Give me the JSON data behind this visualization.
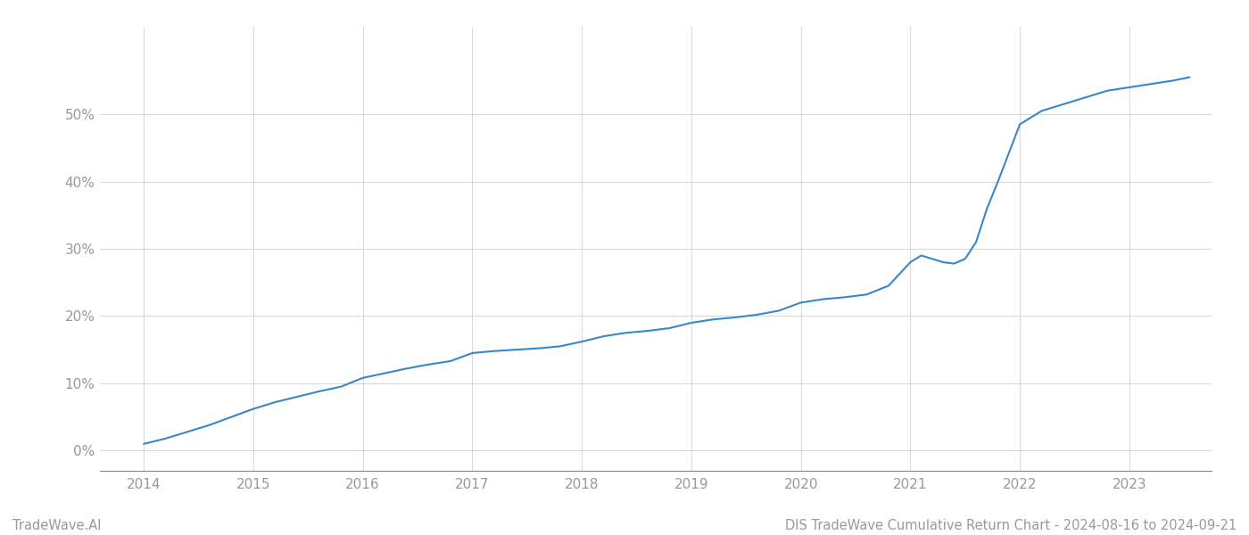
{
  "x_years": [
    2014.0,
    2014.2,
    2014.4,
    2014.6,
    2014.8,
    2015.0,
    2015.2,
    2015.4,
    2015.6,
    2015.8,
    2016.0,
    2016.2,
    2016.4,
    2016.6,
    2016.8,
    2017.0,
    2017.2,
    2017.4,
    2017.6,
    2017.8,
    2018.0,
    2018.2,
    2018.4,
    2018.6,
    2018.8,
    2019.0,
    2019.2,
    2019.4,
    2019.6,
    2019.8,
    2020.0,
    2020.2,
    2020.4,
    2020.6,
    2020.8,
    2021.0,
    2021.1,
    2021.2,
    2021.3,
    2021.4,
    2021.5,
    2021.6,
    2021.7,
    2021.8,
    2022.0,
    2022.2,
    2022.4,
    2022.6,
    2022.8,
    2023.0,
    2023.2,
    2023.4,
    2023.55
  ],
  "y_values": [
    1.0,
    1.8,
    2.8,
    3.8,
    5.0,
    6.2,
    7.2,
    8.0,
    8.8,
    9.5,
    10.8,
    11.5,
    12.2,
    12.8,
    13.3,
    14.5,
    14.8,
    15.0,
    15.2,
    15.5,
    16.2,
    17.0,
    17.5,
    17.8,
    18.2,
    19.0,
    19.5,
    19.8,
    20.2,
    20.8,
    22.0,
    22.5,
    22.8,
    23.2,
    24.5,
    28.0,
    29.0,
    28.5,
    28.0,
    27.8,
    28.5,
    31.0,
    36.0,
    40.0,
    48.5,
    50.5,
    51.5,
    52.5,
    53.5,
    54.0,
    54.5,
    55.0,
    55.5
  ],
  "line_color": "#3a87c8",
  "line_width": 1.5,
  "background_color": "#ffffff",
  "grid_color": "#d0d0d0",
  "axis_color": "#888888",
  "tick_label_color": "#999999",
  "footer_left": "TradeWave.AI",
  "footer_right": "DIS TradeWave Cumulative Return Chart - 2024-08-16 to 2024-09-21",
  "footer_color": "#999999",
  "footer_fontsize": 10.5,
  "xlim": [
    2013.6,
    2023.75
  ],
  "ylim": [
    -3,
    63
  ],
  "yticks": [
    0,
    10,
    20,
    30,
    40,
    50
  ],
  "xticks": [
    2014,
    2015,
    2016,
    2017,
    2018,
    2019,
    2020,
    2021,
    2022,
    2023
  ],
  "fig_width": 14.0,
  "fig_height": 6.0,
  "dpi": 100
}
